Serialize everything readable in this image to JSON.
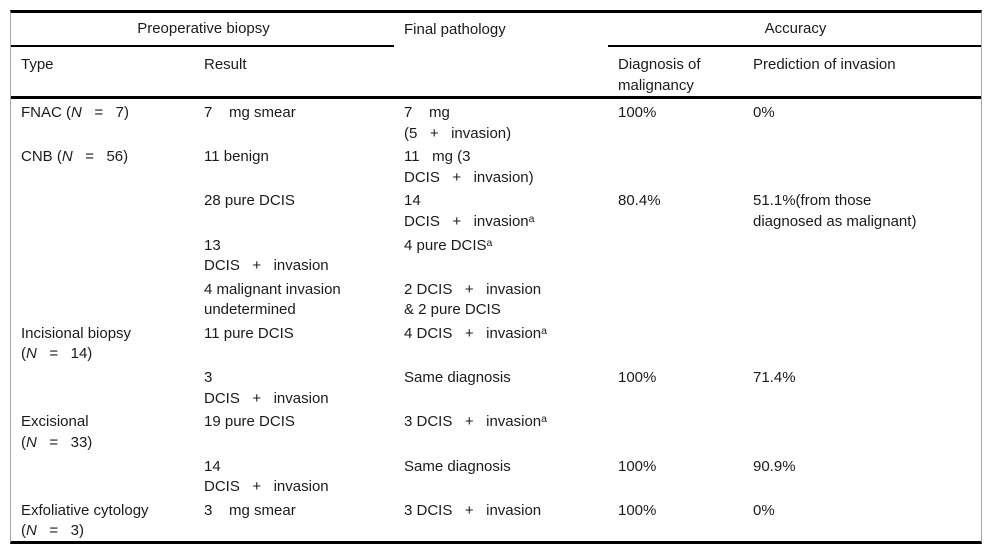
{
  "table": {
    "group_headers": {
      "preoperative_biopsy": "Preoperative biopsy",
      "final_pathology": "Final pathology",
      "accuracy": "Accuracy"
    },
    "sub_headers": {
      "type": "Type",
      "result": "Result",
      "final_pathology": "",
      "diagnosis_of_malignancy": "Diagnosis of\nmalignancy",
      "prediction_of_invasion": "Prediction of invasion"
    },
    "rows": [
      [
        "FNAC (*N*   =   7)",
        "7    mg smear",
        "7    mg\n(5   +   invasion)",
        "100%",
        "0%"
      ],
      [
        "CNB (*N*   =   56)",
        "11 benign",
        "11   mg (3\nDCIS   +   invasion)",
        "",
        ""
      ],
      [
        "",
        "28 pure DCIS",
        "14\nDCIS   +   invasion^a^",
        "80.4%",
        "51.1%(from those\ndiagnosed as malignant)"
      ],
      [
        "",
        "13\nDCIS   +   invasion",
        "4 pure DCIS^a^",
        "",
        ""
      ],
      [
        "",
        "4 malignant invasion\nundetermined",
        "2 DCIS   +   invasion\n& 2 pure DCIS",
        "",
        ""
      ],
      [
        "Incisional biopsy\n(*N*   =   14)",
        "11 pure DCIS",
        "4 DCIS   +   invasion^a^",
        "",
        ""
      ],
      [
        "",
        "3\nDCIS   +   invasion",
        "Same diagnosis",
        "100%",
        "71.4%"
      ],
      [
        "Excisional\n(*N*   =   33)",
        "19 pure DCIS",
        "3 DCIS   +   invasion^a^",
        "",
        ""
      ],
      [
        "",
        "14\nDCIS   +   invasion",
        "Same diagnosis",
        "100%",
        "90.9%"
      ],
      [
        "Exfoliative cytology\n(*N*   =   3)",
        "3    mg smear",
        "3 DCIS   +   invasion",
        "100%",
        "0%"
      ]
    ]
  }
}
